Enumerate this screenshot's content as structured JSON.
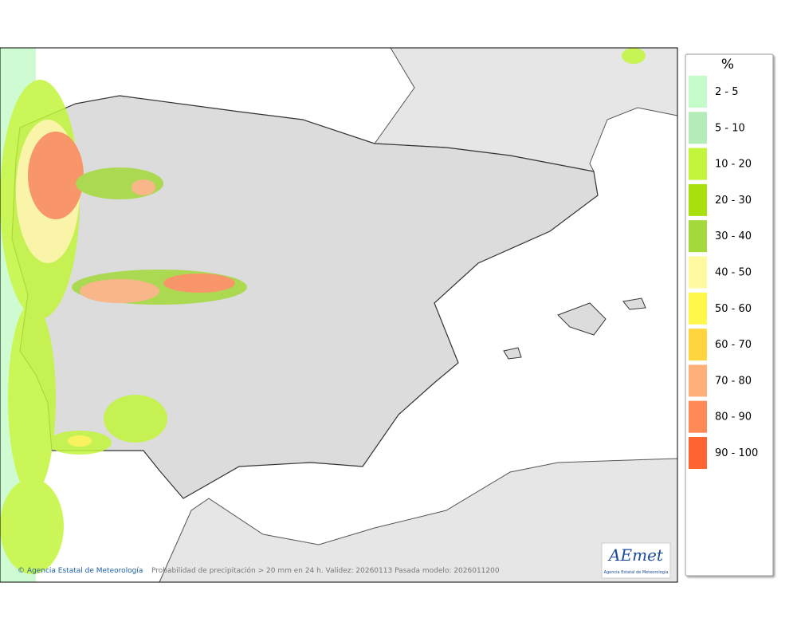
{
  "legend": {
    "title": "%",
    "items": [
      {
        "label": "2 - 5",
        "color": "#c6fbcb"
      },
      {
        "label": "5 - 10",
        "color": "#b5edb9"
      },
      {
        "label": "10 - 20",
        "color": "#c2f53b"
      },
      {
        "label": "20 - 30",
        "color": "#a8e00c"
      },
      {
        "label": "30 - 40",
        "color": "#a3d93a"
      },
      {
        "label": "40 - 50",
        "color": "#fff9a0"
      },
      {
        "label": "50 - 60",
        "color": "#fff74a"
      },
      {
        "label": "60 - 70",
        "color": "#ffd53f"
      },
      {
        "label": "70 - 80",
        "color": "#ffb07a"
      },
      {
        "label": "80 - 90",
        "color": "#ff8a55"
      },
      {
        "label": "90 - 100",
        "color": "#ff6433"
      }
    ]
  },
  "footer": {
    "credit": "Agencia Estatal de Meteorología",
    "caption": "Probabilidad de precipitación > 20 mm en 24 h. Validez: 20260113 Pasada modelo: 2026011200"
  },
  "logo": {
    "mark": "AEmet",
    "name": "Agencia Estatal de Meteorología"
  }
}
